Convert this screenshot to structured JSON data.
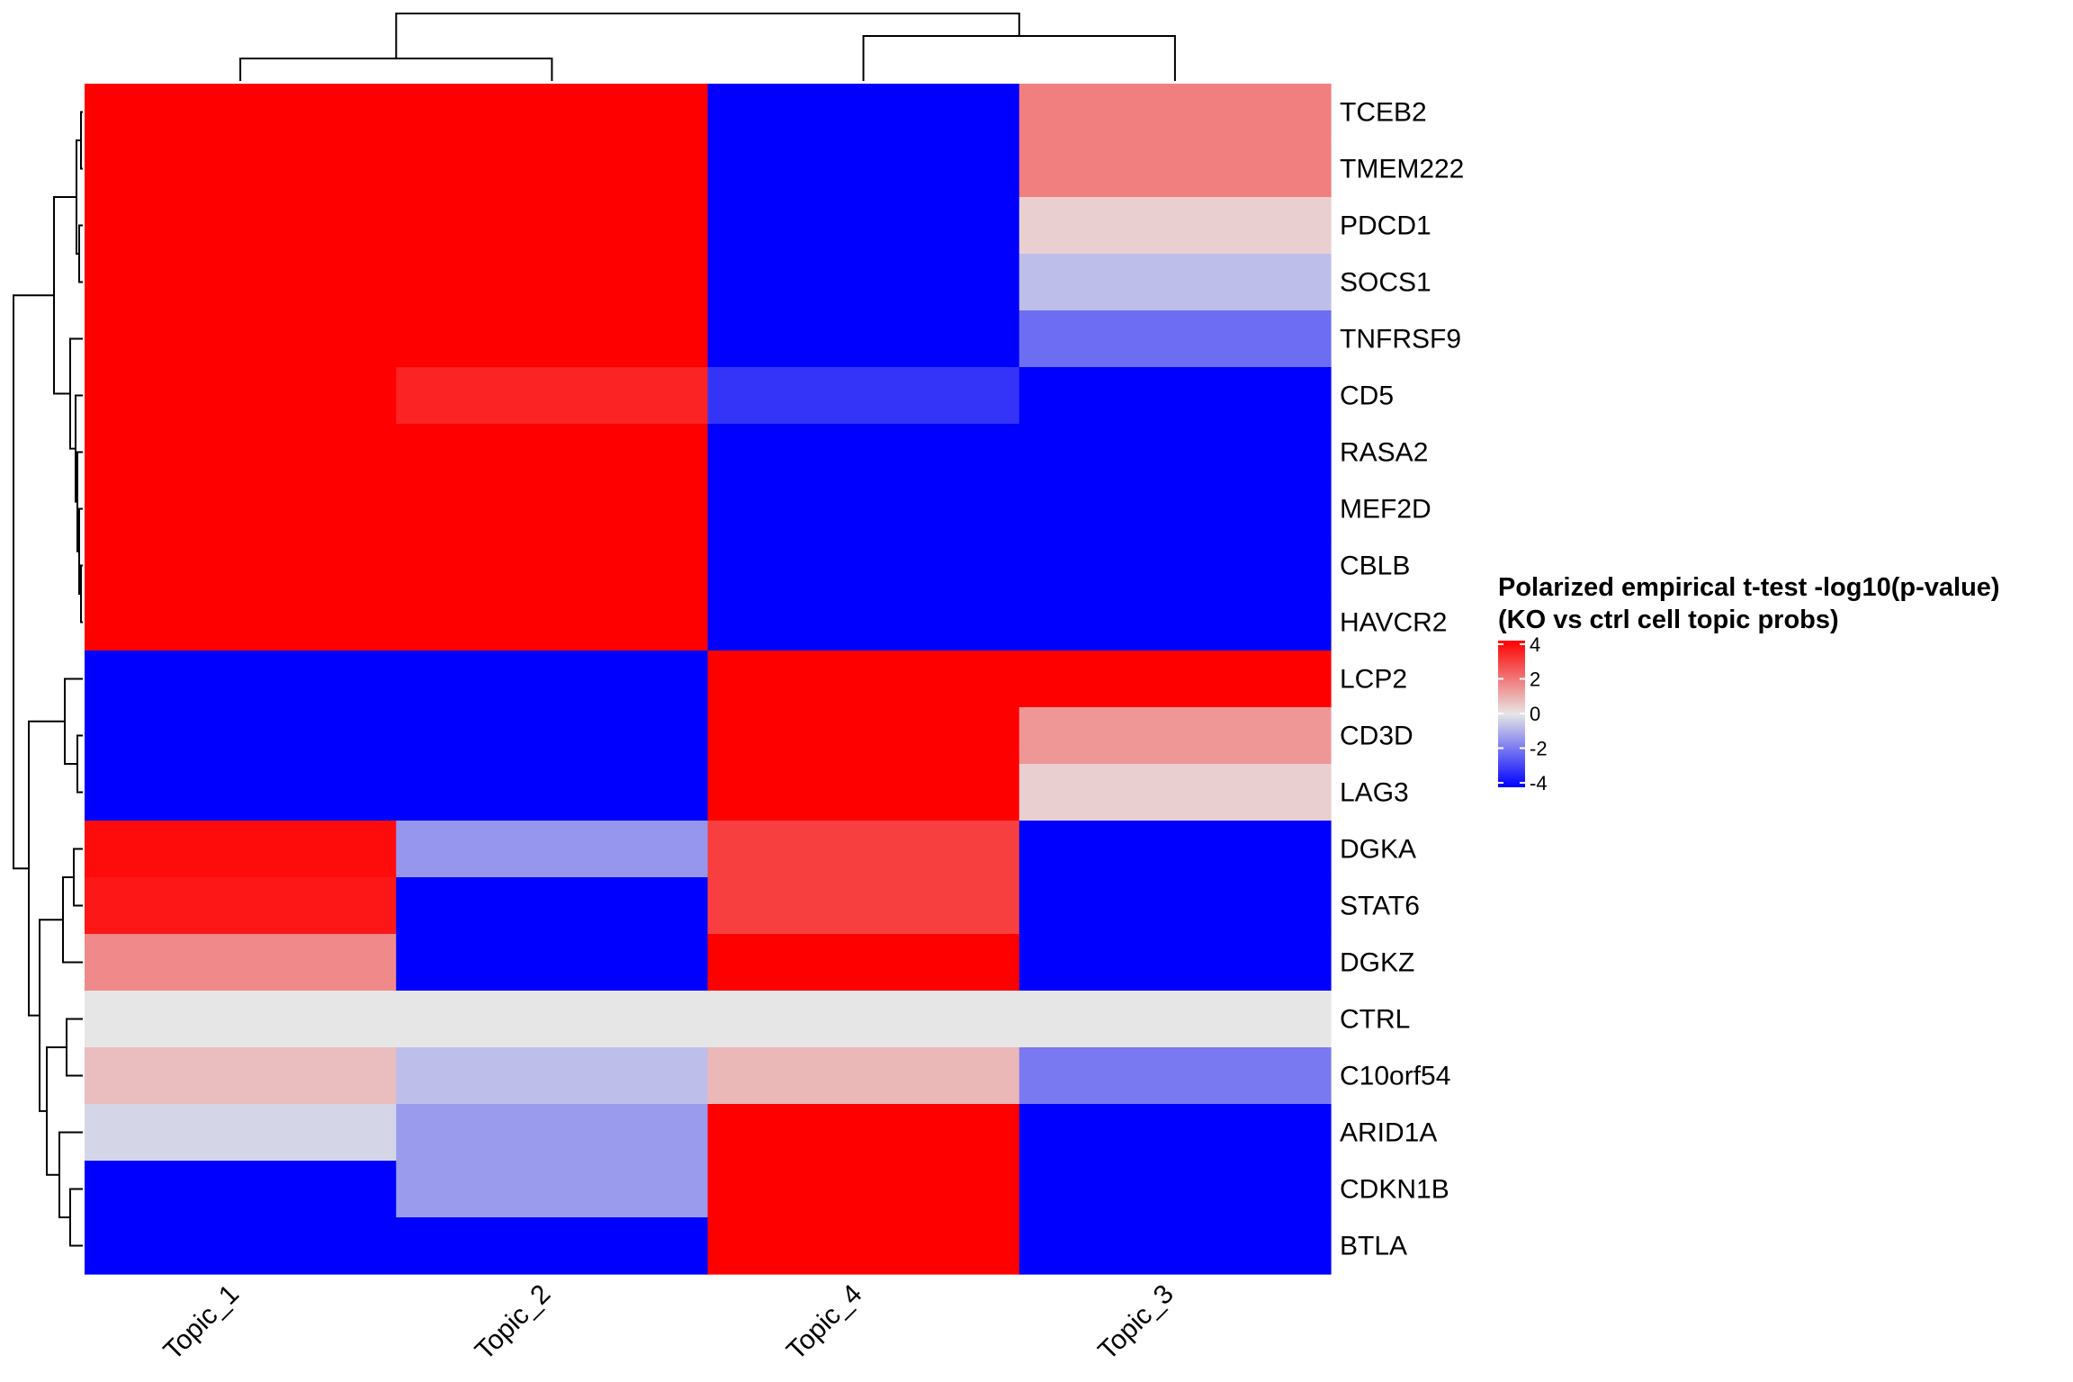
{
  "chart_data": {
    "type": "heatmap",
    "title": "",
    "xlabel": "",
    "ylabel": "",
    "columns": [
      "Topic_1",
      "Topic_2",
      "Topic_4",
      "Topic_3"
    ],
    "rows": [
      "TCEB2",
      "TMEM222",
      "PDCD1",
      "SOCS1",
      "TNFRSF9",
      "CD5",
      "RASA2",
      "MEF2D",
      "CBLB",
      "HAVCR2",
      "LCP2",
      "CD3D",
      "LAG3",
      "DGKA",
      "STAT6",
      "DGKZ",
      "CTRL",
      "C10orf54",
      "ARID1A",
      "CDKN1B",
      "BTLA"
    ],
    "values": [
      [
        4,
        4,
        -4,
        1.8
      ],
      [
        4,
        4,
        -4,
        1.8
      ],
      [
        4,
        4,
        -4,
        0.4
      ],
      [
        4,
        4,
        -4,
        -0.7
      ],
      [
        4,
        4,
        -4,
        -2.1
      ],
      [
        4,
        3.4,
        -3.1,
        -4
      ],
      [
        4,
        4,
        -4,
        -4
      ],
      [
        4,
        4,
        -4,
        -4
      ],
      [
        4,
        4,
        -4,
        -4
      ],
      [
        4,
        4,
        -4,
        -4
      ],
      [
        -4,
        -4,
        4,
        4
      ],
      [
        -4,
        -4,
        4,
        1.4
      ],
      [
        -4,
        -4,
        4,
        0.4
      ],
      [
        3.8,
        -1.4,
        2.9,
        -4
      ],
      [
        3.6,
        -4,
        2.9,
        -4
      ],
      [
        1.6,
        -4,
        4,
        -4
      ],
      [
        0,
        0,
        0,
        0
      ],
      [
        0.7,
        -0.7,
        0.8,
        -1.9
      ],
      [
        -0.3,
        -1.3,
        4,
        -4
      ],
      [
        -4,
        -1.3,
        4,
        -4
      ],
      [
        -4,
        -4,
        4,
        -4
      ]
    ],
    "color_scale": {
      "min": -4,
      "max": 4,
      "low_color": "#0000FF",
      "mid_color": "#E6E6E6",
      "high_color": "#FF0000"
    },
    "legend": {
      "title_line1": "Polarized empirical t-test -log10(p-value)",
      "title_line2": "(KO vs ctrl cell topic probs)",
      "ticks": [
        4,
        2,
        0,
        -2,
        -4
      ],
      "tick_labels": [
        "4",
        "2",
        "0",
        "-2",
        "-4"
      ],
      "placement": "right"
    },
    "column_dendrogram": true,
    "row_dendrogram": true,
    "grid": false
  }
}
